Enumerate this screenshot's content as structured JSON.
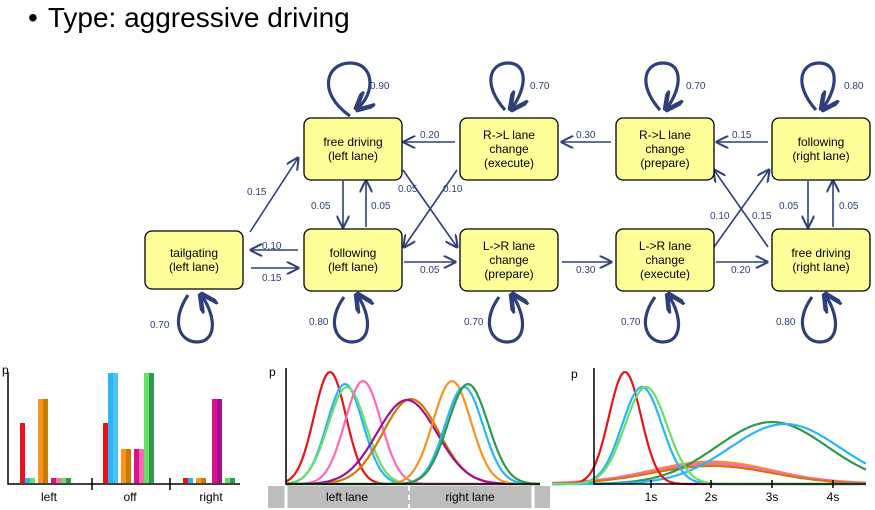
{
  "title": {
    "bullet": "•",
    "text": "Type: aggressive driving"
  },
  "states": {
    "tailgating": "tailgating|(left lane)",
    "free_left": "free driving|(left lane)",
    "follow_left": "following|(left lane)",
    "rl_exec": "R->L lane|change|(execute)",
    "lr_prep": "L->R lane|change|(prepare)",
    "rl_prep": "R->L lane|change|(prepare)",
    "lr_exec": "L->R lane|change|(execute)",
    "follow_right": "following|(right lane)",
    "free_right": "free driving|(right lane)"
  },
  "self_loops": {
    "free_left": "0.90",
    "rl_exec": "0.70",
    "rl_prep": "0.70",
    "follow_right": "0.80",
    "tailgating": "0.70",
    "follow_left": "0.80",
    "lr_prep": "0.70",
    "lr_exec": "0.70",
    "free_right": "0.80"
  },
  "transitions": {
    "tail_to_free": "0.15",
    "follow_to_tail": "0.10",
    "tail_to_follow": "0.15",
    "free_to_follow": "0.05",
    "follow_to_free": "0.05",
    "rlexec_to_free": "0.20",
    "free_to_lrprep": "0.05",
    "rlexec_to_follow": "0.10",
    "follow_to_lrprep": "0.05",
    "rlprep_to_rlexec": "0.30",
    "lrprep_to_lrexec": "0.30",
    "followr_to_rlprep": "0.15",
    "freer_to_rlprep": "0.10",
    "lrexec_to_followr": "0.15",
    "lrexec_to_freer": "0.20",
    "followr_to_freer": "0.05",
    "freer_to_followr": "0.05"
  },
  "bar_chart": {
    "ylabel": "p",
    "xticks": [
      "left",
      "off",
      "right"
    ]
  },
  "lane_chart": {
    "ylabel": "p",
    "xticks": [
      "left lane",
      "right lane"
    ]
  },
  "time_chart": {
    "ylabel": "p",
    "xticks": [
      "1s",
      "2s",
      "3s",
      "4s"
    ]
  },
  "colors": {
    "edge": "#2e3f7a",
    "state_fill": "#ffff99",
    "series": [
      "#e8141a",
      "#29b6f6",
      "#66e06a",
      "#f7941d",
      "#e0108a",
      "#ff69b4",
      "#cc7a00",
      "#2e9a4a",
      "#a01090"
    ]
  }
}
